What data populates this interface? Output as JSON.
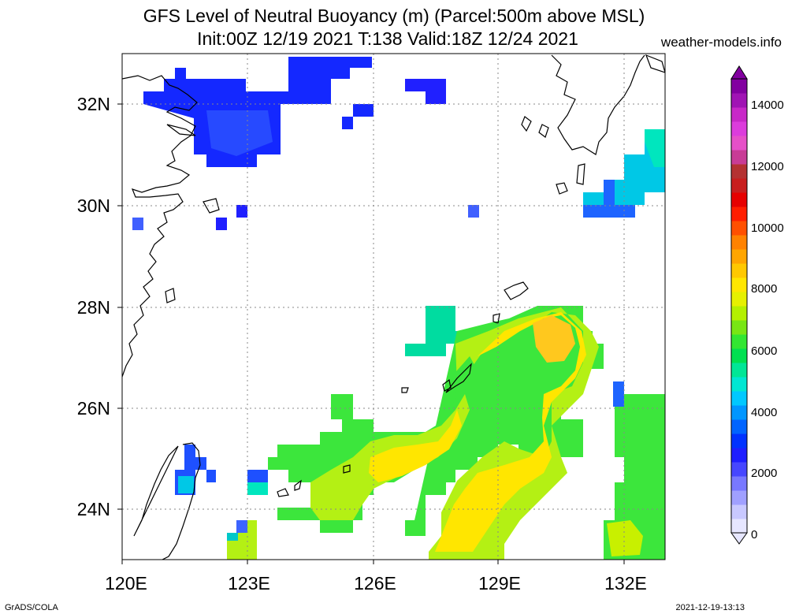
{
  "title_line1": "GFS Level of Neutral Buoyancy (m) (Parcel:500m above MSL)",
  "title_line2": "Init:00Z 12/19 2021 T:138 Valid:18Z 12/24 2021",
  "brand": "weather-models.info",
  "footer_left": "GrADS/COLA",
  "footer_right": "2021-12-19-13:13",
  "map": {
    "lon_labels": [
      "120E",
      "123E",
      "126E",
      "129E",
      "132E"
    ],
    "lat_labels": [
      "24N",
      "26N",
      "28N",
      "30N",
      "32N"
    ]
  },
  "colorbar": {
    "labels": [
      "0",
      "2000",
      "4000",
      "6000",
      "8000",
      "10000",
      "12000",
      "14000"
    ],
    "colors": [
      "#e6e6ff",
      "#c8c8ff",
      "#a0a0ff",
      "#7878ff",
      "#4646ff",
      "#1e1eff",
      "#0032ff",
      "#0064ff",
      "#0096ff",
      "#00c8ff",
      "#00e6d2",
      "#00e696",
      "#00e050",
      "#32e632",
      "#78e614",
      "#b4f000",
      "#e6f000",
      "#ffe600",
      "#ffc800",
      "#ffa500",
      "#ff8200",
      "#ff5000",
      "#ff1e00",
      "#e60000",
      "#c81e1e",
      "#b43232",
      "#c83c96",
      "#e650c8",
      "#dc3cdc",
      "#c828c8",
      "#a014b4",
      "#8200a0"
    ]
  },
  "colors": {
    "blue": "#1428ff",
    "blue_light": "#3c5aff",
    "cyan": "#00d2c8",
    "green": "#3ce63c",
    "yellowgreen": "#b4f014",
    "yellow": "#ffe600",
    "orange": "#ffc800"
  }
}
